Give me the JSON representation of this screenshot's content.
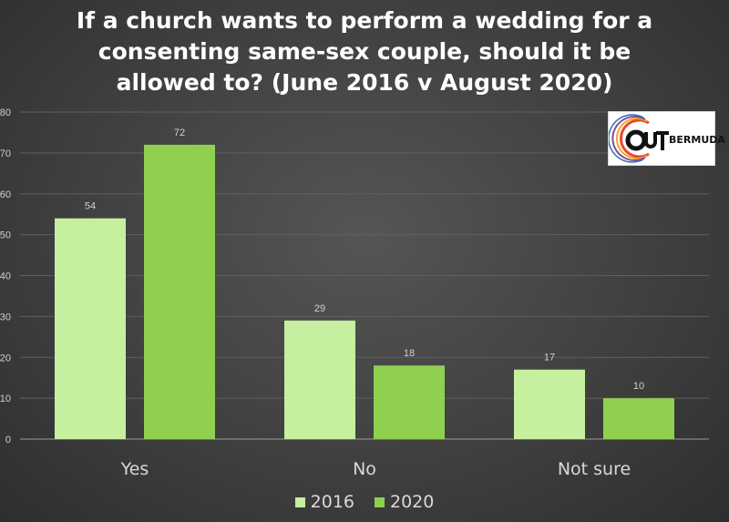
{
  "chart_data": {
    "type": "bar",
    "title": "If a church wants to perform a wedding for a consenting same-sex couple, should it be allowed to? (June 2016 v August 2020)",
    "categories": [
      "Yes",
      "No",
      "Not sure"
    ],
    "series": [
      {
        "name": "2016",
        "values": [
          54,
          29,
          17
        ],
        "color": "#c6ef9f"
      },
      {
        "name": "2020",
        "values": [
          72,
          18,
          10
        ],
        "color": "#8fd14f"
      }
    ],
    "xlabel": "",
    "ylabel": "",
    "ylim": [
      0,
      80
    ],
    "yticks": [
      "0",
      "10",
      "20",
      "30",
      "40",
      "50",
      "60",
      "70",
      "80"
    ],
    "grid": true,
    "legend_position": "bottom",
    "data_labels": true
  },
  "logo": {
    "text": "BERMUDA",
    "wordmark": "OUT"
  }
}
